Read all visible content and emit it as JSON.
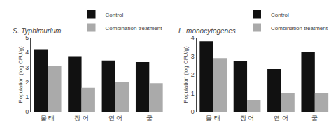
{
  "chart_data": [
    {
      "type": "bar",
      "title": "S. Typhimurium",
      "categories": [
        "물 태",
        "장 어",
        "연 어",
        "굴"
      ],
      "series": [
        {
          "name": "Control",
          "color": "#111111",
          "values": [
            4.22,
            3.75,
            3.45,
            3.35
          ]
        },
        {
          "name": "Combination treatment",
          "color": "#aaaaaa",
          "values": [
            3.08,
            1.62,
            2.02,
            1.92
          ]
        }
      ],
      "ylabel": "Population (log CFU/g)",
      "ylim": [
        0,
        5
      ],
      "yticks": [
        0,
        1,
        2,
        3,
        4,
        5
      ],
      "grid": false,
      "legend": "upper right"
    },
    {
      "type": "bar",
      "title": "L. monocytogenes",
      "categories": [
        "물 태",
        "장 어",
        "연 어",
        "굴"
      ],
      "series": [
        {
          "name": "Control",
          "color": "#111111",
          "values": [
            3.8,
            2.75,
            2.3,
            3.25
          ]
        },
        {
          "name": "Combination treatment",
          "color": "#aaaaaa",
          "values": [
            2.9,
            0.62,
            1.02,
            1.02
          ]
        }
      ],
      "ylabel": "Population (log CFU/g)",
      "ylim": [
        0,
        4
      ],
      "yticks": [
        0,
        1,
        2,
        3,
        4
      ],
      "grid": false,
      "legend": "upper right"
    }
  ]
}
